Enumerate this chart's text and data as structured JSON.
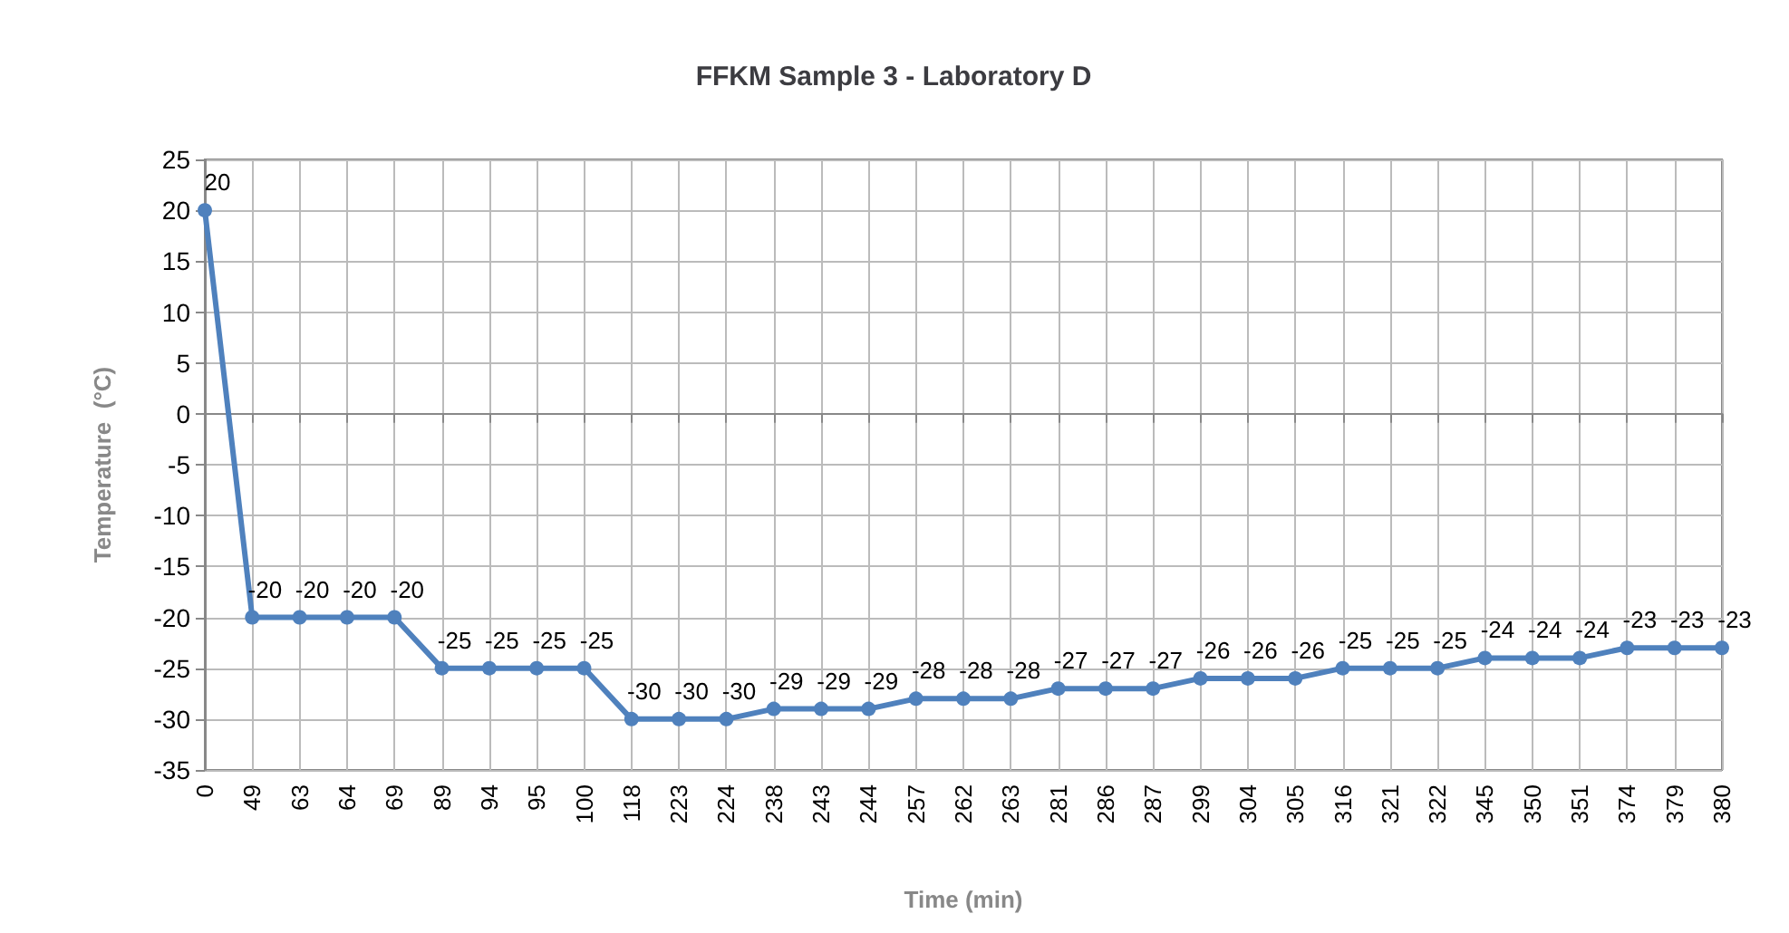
{
  "chart_data": {
    "type": "line",
    "title": "FFKM Sample 3 - Laboratory D",
    "xlabel": "Time (min)",
    "ylabel": "Temperature  (°C)",
    "categories": [
      "0",
      "49",
      "63",
      "64",
      "69",
      "89",
      "94",
      "95",
      "100",
      "118",
      "223",
      "224",
      "238",
      "243",
      "244",
      "257",
      "262",
      "263",
      "281",
      "286",
      "287",
      "299",
      "304",
      "305",
      "316",
      "321",
      "322",
      "345",
      "350",
      "351",
      "374",
      "379",
      "380"
    ],
    "series": [
      {
        "color": "#4f81bd",
        "values": [
          20,
          -20,
          -20,
          -20,
          -20,
          -25,
          -25,
          -25,
          -25,
          -30,
          -30,
          -30,
          -29,
          -29,
          -29,
          -28,
          -28,
          -28,
          -27,
          -27,
          -27,
          -26,
          -26,
          -26,
          -25,
          -25,
          -25,
          -24,
          -24,
          -24,
          -23,
          -23,
          -23
        ]
      }
    ],
    "ylim": [
      -35,
      25
    ],
    "yticks": [
      -35,
      -30,
      -25,
      -20,
      -15,
      -10,
      -5,
      0,
      5,
      10,
      15,
      20,
      25
    ],
    "grid": true,
    "marker": "circle",
    "line_style": "solid",
    "data_labels": true
  }
}
